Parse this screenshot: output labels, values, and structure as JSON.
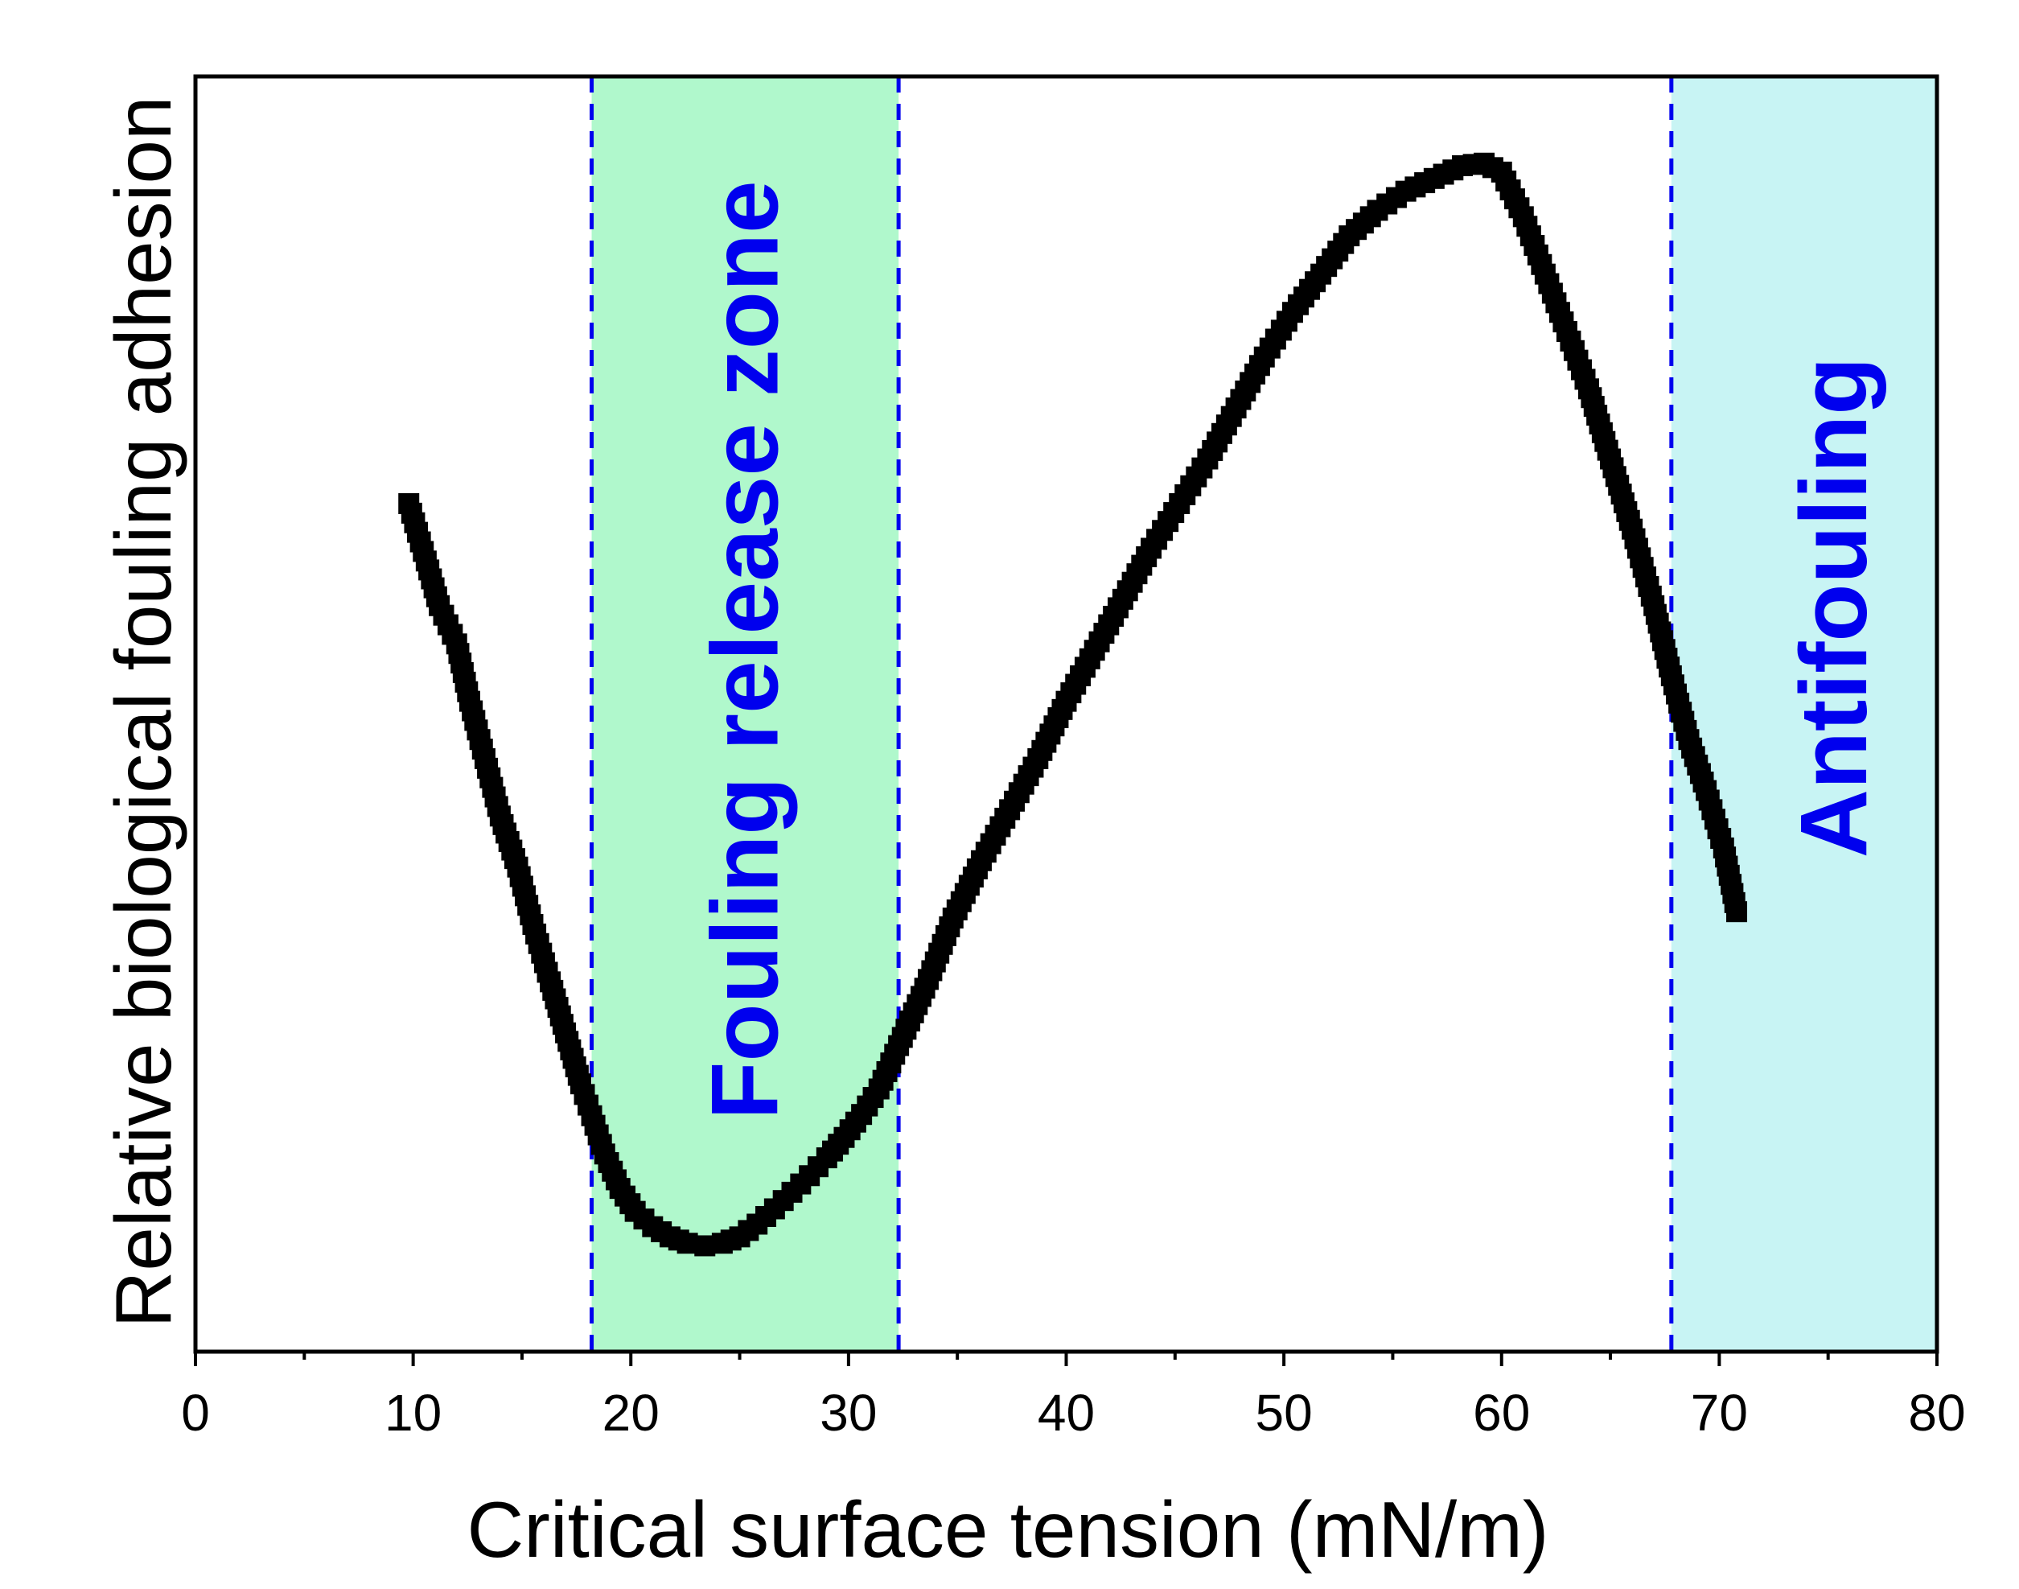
{
  "chart_data": {
    "type": "scatter",
    "xlabel": "Critical surface tension (mN/m)",
    "ylabel": "Relative biological fouling adhesion",
    "xlim": [
      0,
      80
    ],
    "ylim": [
      0,
      1
    ],
    "x_ticks": [
      0,
      10,
      20,
      30,
      40,
      50,
      60,
      70,
      80
    ],
    "x_tick_labels": [
      "0",
      "10",
      "20",
      "30",
      "40",
      "50",
      "60",
      "70",
      "80"
    ],
    "y_tick_labels_shown": false,
    "grid": false,
    "zones": [
      {
        "name": "fouling-release-zone",
        "label": "Fouling release zone",
        "x_start": 18.2,
        "x_end": 32.3,
        "fill": "#b0f8cc",
        "text_color": "#0000ee"
      },
      {
        "name": "antifouling-zone",
        "label": "Antifouling",
        "x_start": 67.8,
        "x_end": 80,
        "fill": "#c8f4f4",
        "text_color": "#0000ee"
      }
    ],
    "boundary_line_color": "#0000ee",
    "series": [
      {
        "name": "adhesion",
        "marker_color": "#000000",
        "marker": "square",
        "x": [
          9.8,
          10.6,
          11.2,
          12.0,
          12.6,
          13.3,
          14.0,
          14.8,
          15.5,
          16.3,
          17.0,
          17.7,
          18.2,
          18.8,
          19.5,
          20.2,
          21.0,
          21.8,
          22.6,
          23.4,
          24.2,
          25.0,
          25.8,
          26.6,
          27.4,
          28.2,
          29.0,
          29.8,
          30.6,
          31.4,
          32.3,
          33.5,
          34.8,
          36.1,
          37.4,
          38.7,
          40.0,
          41.3,
          42.6,
          43.9,
          45.2,
          46.5,
          47.8,
          49.1,
          50.4,
          51.7,
          53.0,
          54.3,
          55.6,
          56.9,
          58.2,
          59.2,
          60.0,
          61.0,
          62.0,
          63.0,
          64.0,
          65.0,
          66.0,
          67.0,
          67.8,
          68.6,
          69.4,
          70.2,
          70.8
        ],
        "y": [
          0.665,
          0.62,
          0.585,
          0.555,
          0.51,
          0.465,
          0.42,
          0.38,
          0.335,
          0.29,
          0.25,
          0.21,
          0.185,
          0.155,
          0.128,
          0.11,
          0.098,
          0.09,
          0.085,
          0.083,
          0.085,
          0.09,
          0.1,
          0.112,
          0.125,
          0.138,
          0.152,
          0.168,
          0.186,
          0.206,
          0.24,
          0.285,
          0.34,
          0.385,
          0.425,
          0.465,
          0.51,
          0.55,
          0.59,
          0.63,
          0.665,
          0.7,
          0.74,
          0.78,
          0.815,
          0.845,
          0.875,
          0.895,
          0.91,
          0.92,
          0.93,
          0.932,
          0.925,
          0.89,
          0.845,
          0.8,
          0.755,
          0.7,
          0.645,
          0.585,
          0.53,
          0.48,
          0.44,
          0.395,
          0.345
        ]
      }
    ]
  }
}
